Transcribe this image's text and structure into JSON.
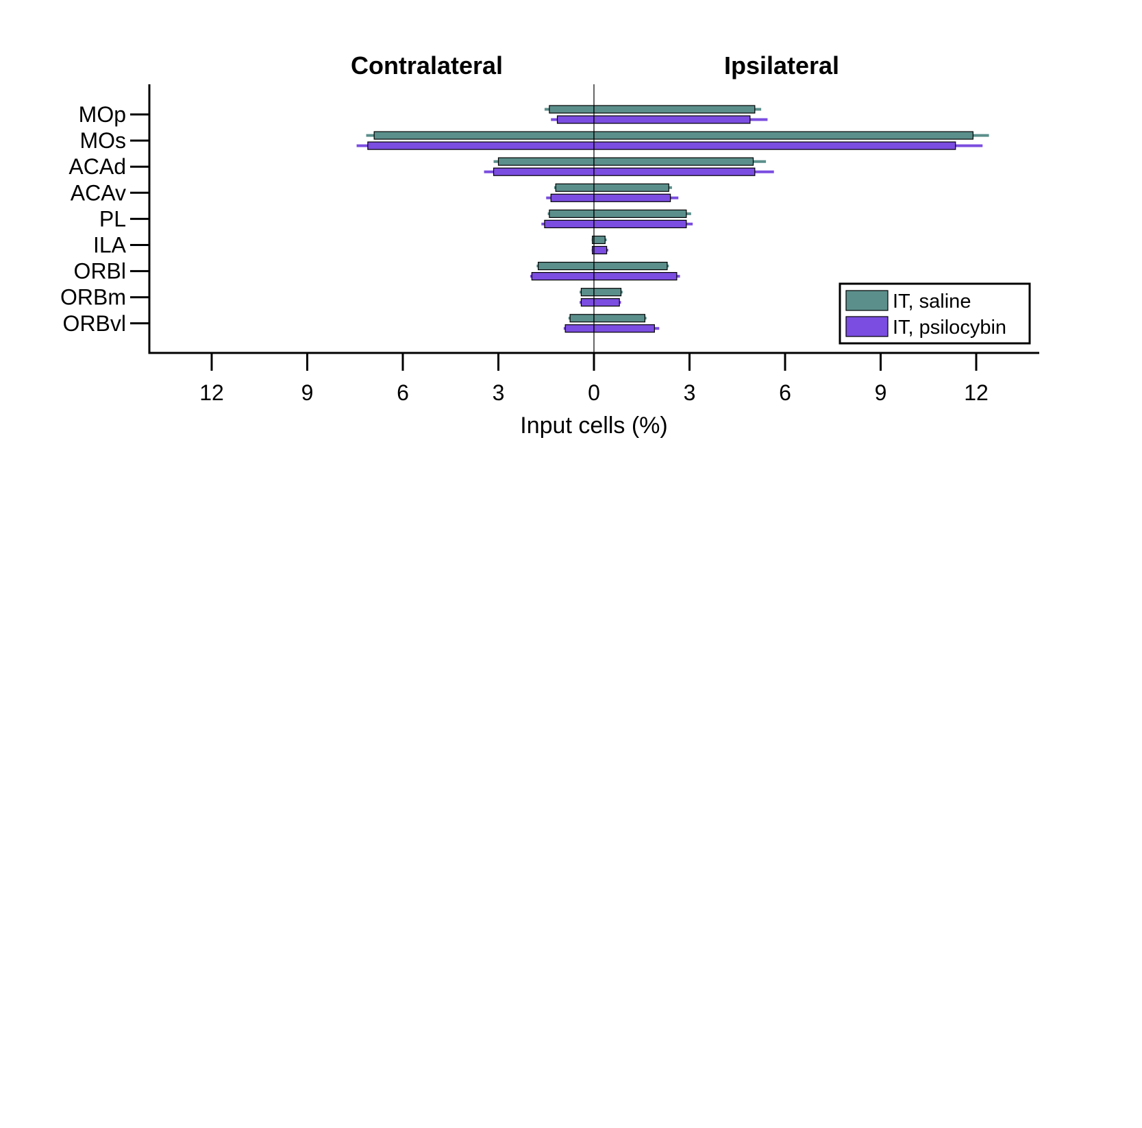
{
  "chart_data": {
    "type": "bar",
    "orientation": "horizontal-butterfly",
    "panel_titles": {
      "left": "Contralateral",
      "right": "Ipsilateral"
    },
    "xlabel": "Input cells (%)",
    "x_ticks": [
      {
        "value": -12,
        "label": "12"
      },
      {
        "value": -9,
        "label": "9"
      },
      {
        "value": -6,
        "label": "6"
      },
      {
        "value": -3,
        "label": "3"
      },
      {
        "value": 0,
        "label": "0"
      },
      {
        "value": 3,
        "label": "3"
      },
      {
        "value": 6,
        "label": "6"
      },
      {
        "value": 9,
        "label": "9"
      },
      {
        "value": 12,
        "label": "12"
      }
    ],
    "xlim": [
      -14,
      14
    ],
    "categories": [
      "MOp",
      "MOs",
      "ACAd",
      "ACAv",
      "PL",
      "ILA",
      "ORBl",
      "ORBm",
      "ORBvl"
    ],
    "legend_position": "bottom-right",
    "series": [
      {
        "name": "IT, saline",
        "color": "#5b8f8b",
        "contralateral": [
          1.4,
          6.9,
          3.0,
          1.2,
          1.4,
          0.05,
          1.75,
          0.4,
          0.75
        ],
        "contralateral_err": [
          0.15,
          0.25,
          0.15,
          0.05,
          0.05,
          0.02,
          0.05,
          0.05,
          0.05
        ],
        "ipsilateral": [
          5.05,
          11.9,
          5.0,
          2.35,
          2.9,
          0.35,
          2.3,
          0.85,
          1.6
        ],
        "ipsilateral_err": [
          0.2,
          0.5,
          0.4,
          0.1,
          0.15,
          0.05,
          0.05,
          0.05,
          0.05
        ]
      },
      {
        "name": "IT, psilocybin",
        "color": "#7b4de0",
        "contralateral": [
          1.15,
          7.1,
          3.15,
          1.35,
          1.55,
          0.05,
          1.95,
          0.4,
          0.9
        ],
        "contralateral_err": [
          0.2,
          0.35,
          0.3,
          0.15,
          0.1,
          0.02,
          0.05,
          0.05,
          0.05
        ],
        "ipsilateral": [
          4.9,
          11.35,
          5.05,
          2.4,
          2.9,
          0.4,
          2.6,
          0.8,
          1.9
        ],
        "ipsilateral_err": [
          0.55,
          0.85,
          0.6,
          0.25,
          0.2,
          0.05,
          0.1,
          0.05,
          0.15
        ]
      }
    ]
  }
}
